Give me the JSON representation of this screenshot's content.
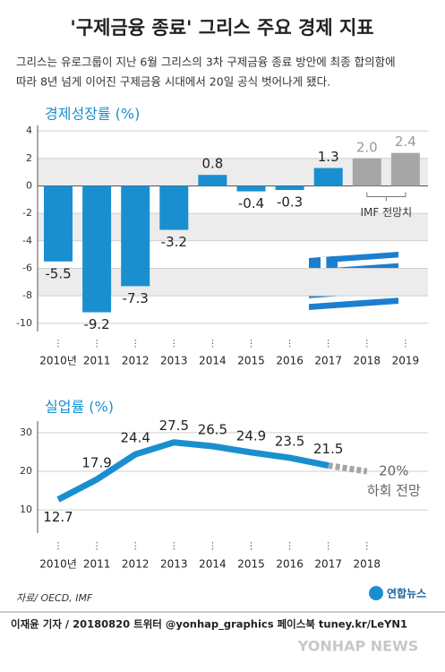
{
  "header": {
    "title": "'구제금융 종료' 그리스 주요 경제 지표",
    "subtitle_lines": [
      "그리스는 유로그룹이 지난 6월 그리스의 3차 구제금융 종료 방안에 최종 합의함에",
      "따라 8년 넘게 이어진 구제금융 시대에서 20일 공식 벗어나게 됐다."
    ]
  },
  "chart_data": [
    {
      "type": "bar",
      "title": "경제성장률 (%)",
      "categories": [
        "2010년",
        "2011",
        "2012",
        "2013",
        "2014",
        "2015",
        "2016",
        "2017",
        "2018",
        "2019"
      ],
      "values": [
        -5.5,
        -9.2,
        -7.3,
        -3.2,
        0.8,
        -0.4,
        -0.3,
        1.3,
        2.0,
        2.4
      ],
      "value_labels": [
        "-5.5",
        "-9.2",
        "-7.3",
        "-3.2",
        "0.8",
        "-0.4",
        "-0.3",
        "1.3",
        "2.0",
        "2.4"
      ],
      "colors": [
        "#1a8fd0",
        "#1a8fd0",
        "#1a8fd0",
        "#1a8fd0",
        "#1a8fd0",
        "#1a8fd0",
        "#1a8fd0",
        "#1a8fd0",
        "#a6a6a6",
        "#a6a6a6"
      ],
      "ylim": [
        -10.6,
        4.4
      ],
      "yticks": [
        4,
        2,
        0,
        -2,
        -4,
        -6,
        -8,
        -10
      ],
      "grid": true,
      "annotation": "IMF 전망치"
    },
    {
      "type": "line",
      "title": "실업률 (%)",
      "categories": [
        "2010년",
        "2011",
        "2012",
        "2013",
        "2014",
        "2015",
        "2016",
        "2017",
        "2018"
      ],
      "values": [
        12.7,
        17.9,
        24.4,
        27.5,
        26.5,
        24.9,
        23.5,
        21.5,
        null
      ],
      "forecast_values": [
        null,
        null,
        null,
        null,
        null,
        null,
        null,
        21.5,
        20
      ],
      "color": "#1a8fd0",
      "forecast_color": "#a6a6a6",
      "ylim": [
        4,
        33
      ],
      "yticks": [
        30,
        20,
        10
      ],
      "grid": true,
      "annotation_lines": [
        "20%",
        "하회 전망"
      ]
    }
  ],
  "footer": {
    "source": "자료/ OECD, IMF",
    "byline": "이재윤 기자 / 20180820  트위터 @yonhap_graphics  페이스북 tuney.kr/LeYN1",
    "logo": "연합뉴스",
    "watermark": "YONHAP NEWS"
  }
}
